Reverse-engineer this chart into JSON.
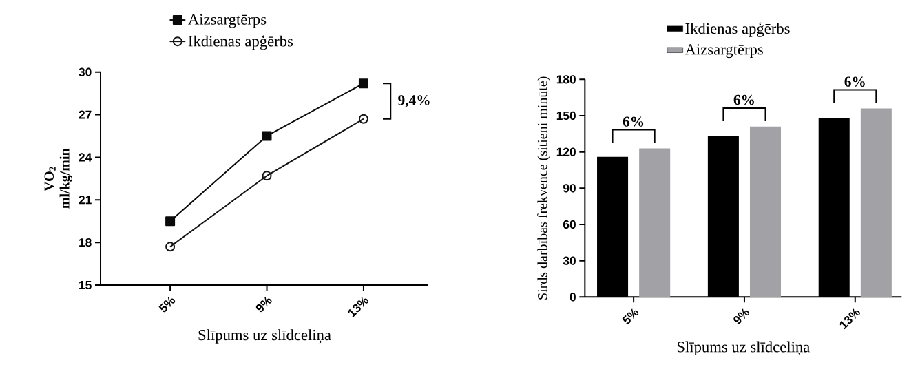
{
  "chart_data": [
    {
      "type": "line",
      "categories": [
        "5%",
        "9%",
        "13%"
      ],
      "xlabel": "Slīpums uz slīdceliņa",
      "ylabel": "VO$_{2}$ ml/kg/min",
      "ylim": [
        15,
        30
      ],
      "yticks": [
        15,
        18,
        21,
        24,
        27,
        30
      ],
      "legend": "top",
      "series": [
        {
          "name": "Aizsargtērps",
          "color": "#0a0a0a",
          "marker": "square",
          "values": [
            19.5,
            25.5,
            29.2
          ]
        },
        {
          "name": "Ikdienas apģērbs",
          "color": "#141414",
          "marker": "circle",
          "values": [
            17.7,
            22.7,
            26.7
          ]
        }
      ],
      "annotations": [
        "9,4%"
      ]
    },
    {
      "type": "bar",
      "categories": [
        "5%",
        "9%",
        "13%"
      ],
      "xlabel": "Slīpums uz slīdceliņa",
      "ylabel": "Sirds darbības frekvence (sitieni minūtē)",
      "ylim": [
        0,
        180
      ],
      "yticks": [
        0,
        30,
        60,
        90,
        120,
        150,
        180
      ],
      "legend": "top",
      "series": [
        {
          "name": "Ikdienas apģērbs",
          "color": "#000000",
          "values": [
            116,
            133,
            148
          ]
        },
        {
          "name": "Aizsargtērps",
          "color": "#a2a1a6",
          "values": [
            123,
            141,
            156
          ]
        }
      ],
      "annotations": [
        "6%",
        "6%",
        "6%"
      ]
    }
  ]
}
